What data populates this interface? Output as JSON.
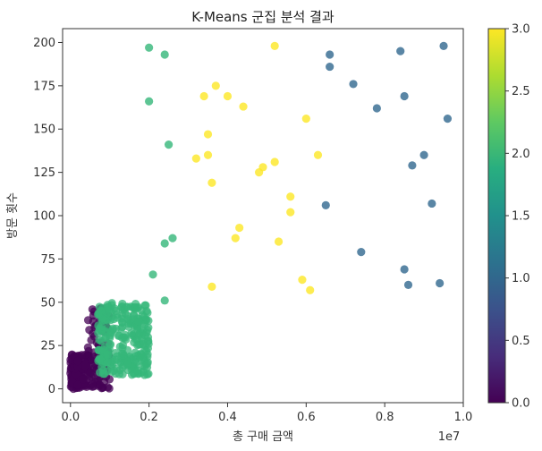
{
  "chart_data": {
    "type": "scatter",
    "title": "K-Means 군집 분석 결과",
    "xlabel": "총 구매 금액",
    "ylabel": "방문 횟수",
    "x_offset_label": "1e7",
    "xlim": [
      -0.02,
      1.0
    ],
    "ylim": [
      -8,
      208
    ],
    "x_ticks": [
      0.0,
      0.2,
      0.4,
      0.6,
      0.8,
      1.0
    ],
    "x_tick_labels": [
      "0.0",
      "0.2",
      "0.4",
      "0.6",
      "0.8",
      "1.0"
    ],
    "y_ticks": [
      0,
      25,
      50,
      75,
      100,
      125,
      150,
      175,
      200
    ],
    "y_tick_labels": [
      "0",
      "25",
      "50",
      "75",
      "100",
      "125",
      "150",
      "175",
      "200"
    ],
    "grid": false,
    "colorbar": {
      "min": 0.0,
      "max": 3.0,
      "ticks": [
        0.0,
        0.5,
        1.0,
        1.5,
        2.0,
        2.5,
        3.0
      ],
      "tick_labels": [
        "0.0",
        "0.5",
        "1.0",
        "1.5",
        "2.0",
        "2.5",
        "3.0"
      ],
      "colormap": "viridis"
    },
    "cluster_colors": {
      "0": "#440154",
      "1": "#31688e",
      "2": "#35b779",
      "3": "#fde725"
    },
    "series": [
      {
        "cluster": 3,
        "points": [
          [
            0.52,
            198
          ],
          [
            0.37,
            175
          ],
          [
            0.34,
            169
          ],
          [
            0.4,
            169
          ],
          [
            0.44,
            163
          ],
          [
            0.6,
            156
          ],
          [
            0.35,
            147
          ],
          [
            0.35,
            135
          ],
          [
            0.32,
            133
          ],
          [
            0.63,
            135
          ],
          [
            0.52,
            131
          ],
          [
            0.49,
            128
          ],
          [
            0.48,
            125
          ],
          [
            0.36,
            119
          ],
          [
            0.56,
            111
          ],
          [
            0.56,
            102
          ],
          [
            0.43,
            93
          ],
          [
            0.42,
            87
          ],
          [
            0.53,
            85
          ],
          [
            0.59,
            63
          ],
          [
            0.36,
            59
          ],
          [
            0.61,
            57
          ]
        ]
      },
      {
        "cluster": 1,
        "points": [
          [
            0.95,
            198
          ],
          [
            0.84,
            195
          ],
          [
            0.66,
            193
          ],
          [
            0.66,
            186
          ],
          [
            0.72,
            176
          ],
          [
            0.85,
            169
          ],
          [
            0.78,
            162
          ],
          [
            0.96,
            156
          ],
          [
            0.9,
            135
          ],
          [
            0.87,
            129
          ],
          [
            0.92,
            107
          ],
          [
            0.65,
            106
          ],
          [
            0.74,
            79
          ],
          [
            0.85,
            69
          ],
          [
            0.94,
            61
          ],
          [
            0.86,
            60
          ]
        ]
      },
      {
        "cluster": 2,
        "points": [
          [
            0.2,
            197
          ],
          [
            0.24,
            193
          ],
          [
            0.2,
            166
          ],
          [
            0.25,
            141
          ],
          [
            0.26,
            87
          ],
          [
            0.24,
            84
          ],
          [
            0.21,
            66
          ],
          [
            0.24,
            51
          ]
        ]
      }
    ],
    "dense_clusters": [
      {
        "cluster": 0,
        "x_range": [
          0.0,
          0.1
        ],
        "y_range": [
          0,
          48
        ],
        "note_count": 220
      },
      {
        "cluster": 2,
        "x_range": [
          0.07,
          0.2
        ],
        "y_range": [
          8,
          50
        ],
        "note_count": 260
      }
    ]
  }
}
